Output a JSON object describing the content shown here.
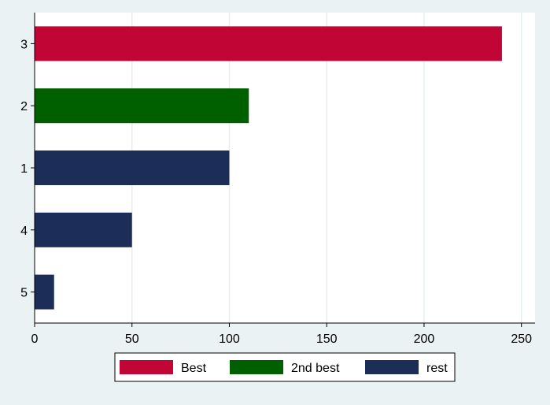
{
  "chart_data": {
    "type": "bar",
    "orientation": "horizontal",
    "categories": [
      "3",
      "2",
      "1",
      "4",
      "5"
    ],
    "values": [
      240,
      110,
      100,
      50,
      10
    ],
    "bar_groups": [
      "Best",
      "2nd best",
      "rest",
      "rest",
      "rest"
    ],
    "xlim": [
      0,
      257
    ],
    "x_ticks": [
      0,
      50,
      100,
      150,
      200,
      250
    ],
    "grid": true,
    "legend_position": "bottom",
    "legend": [
      {
        "name": "Best",
        "color": "#c10534"
      },
      {
        "name": "2nd best",
        "color": "#006000"
      },
      {
        "name": "rest",
        "color": "#1c2d57"
      }
    ],
    "title": "",
    "xlabel": "",
    "ylabel": ""
  },
  "colors": {
    "background": "#eaf2f3",
    "plot_background": "#ffffff",
    "grid": "#e6eeee",
    "axis": "#000000"
  }
}
